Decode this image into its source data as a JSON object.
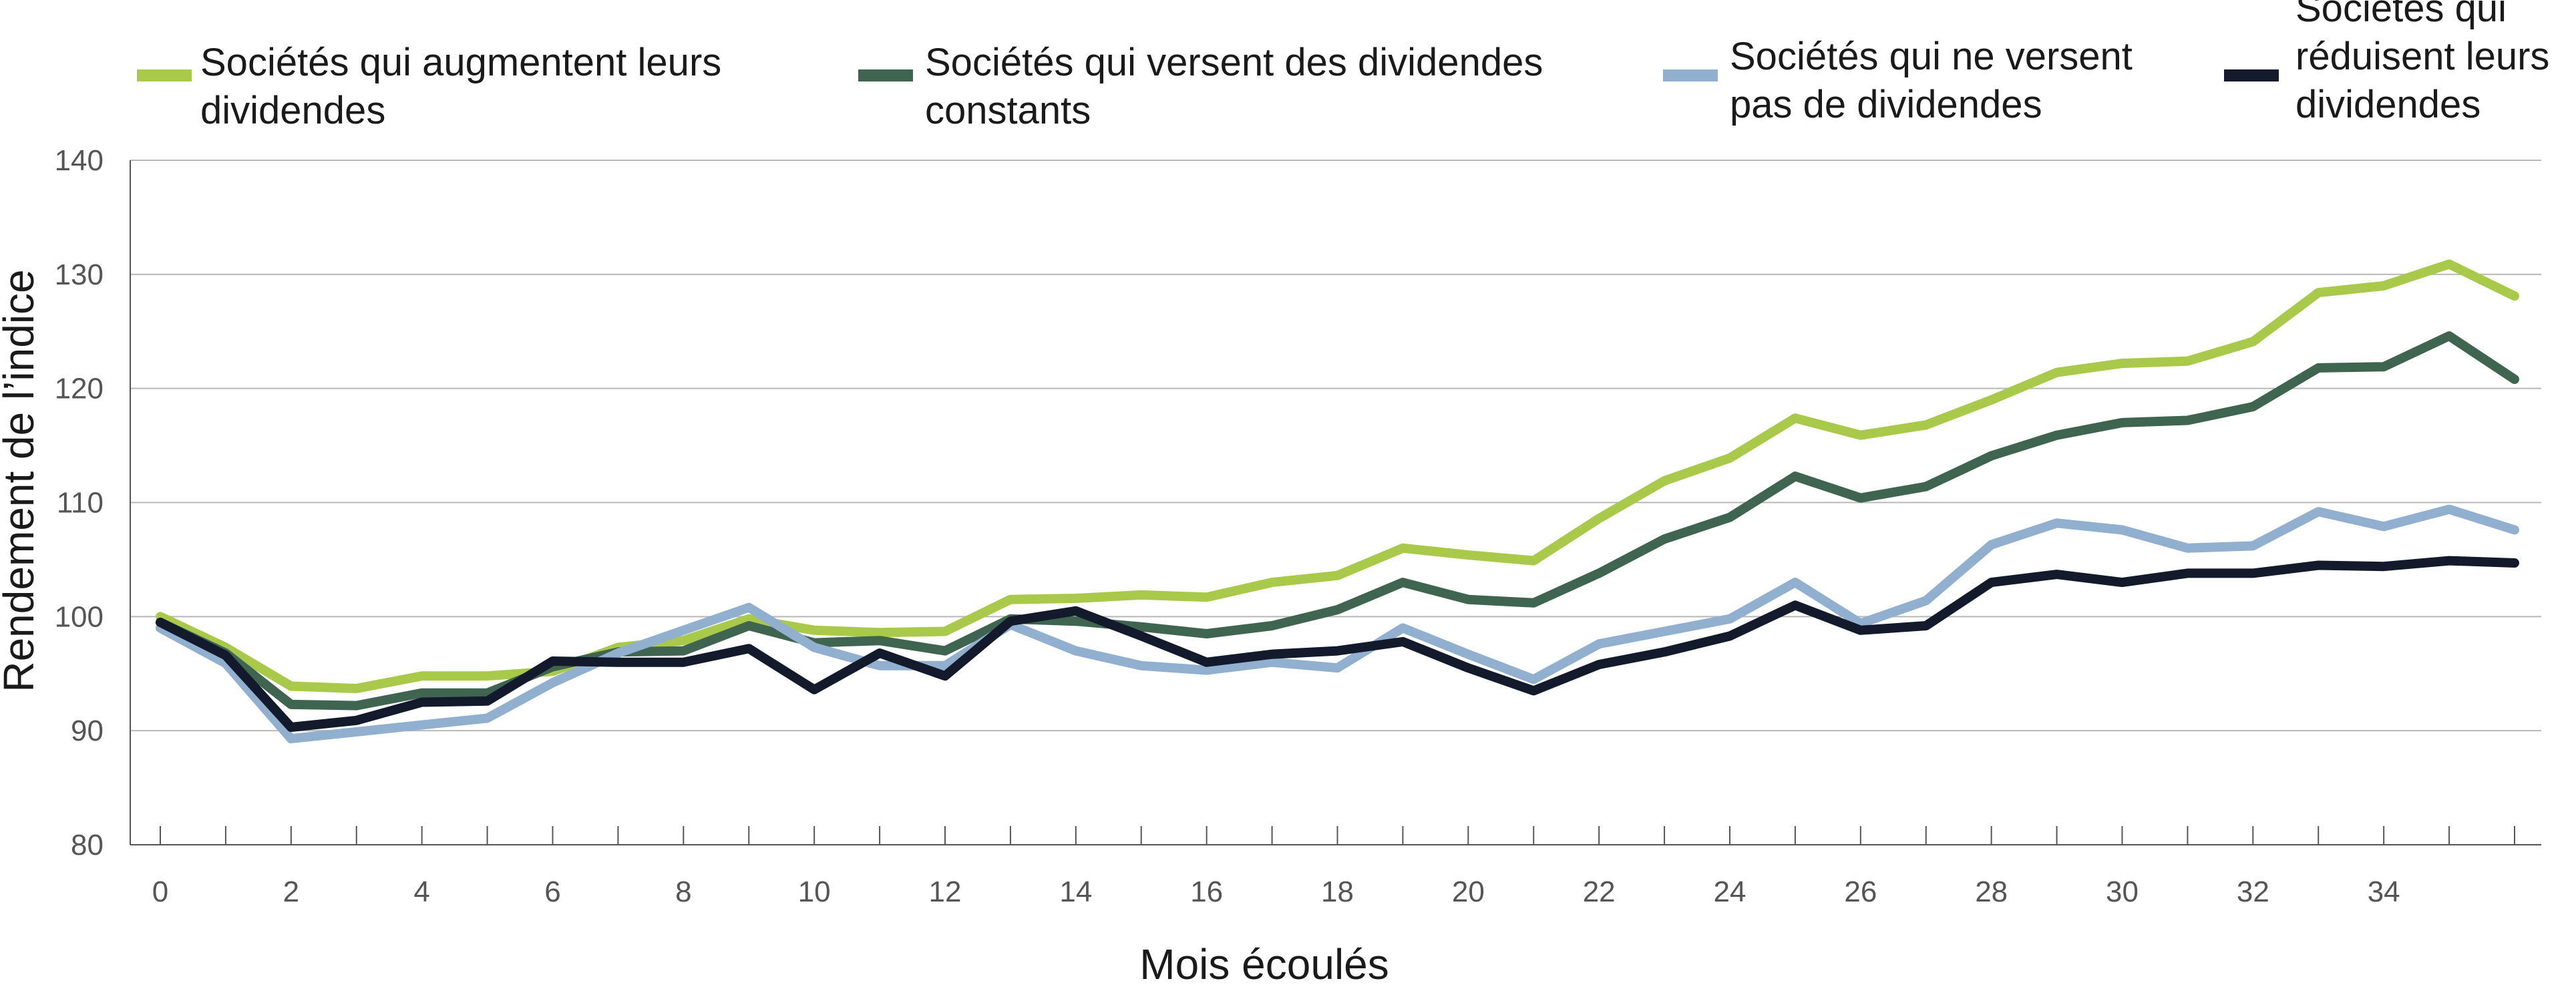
{
  "chart_data": {
    "type": "line",
    "title": "",
    "xlabel": "Mois écoulés",
    "ylabel": "Rendement de l’indice",
    "ylim": [
      80,
      140
    ],
    "xlim": [
      0,
      36
    ],
    "yticks": [
      80,
      90,
      100,
      110,
      120,
      130,
      140
    ],
    "xticks": [
      0,
      2,
      4,
      6,
      8,
      10,
      12,
      14,
      16,
      18,
      20,
      22,
      24,
      26,
      28,
      30,
      32,
      34
    ],
    "grid": "horizontal",
    "legend_position": "top",
    "x": [
      0,
      1,
      2,
      3,
      4,
      5,
      6,
      7,
      8,
      9,
      10,
      11,
      12,
      13,
      14,
      15,
      16,
      17,
      18,
      19,
      20,
      21,
      22,
      23,
      24,
      25,
      26,
      27,
      28,
      29,
      30,
      31,
      32,
      33,
      34,
      35,
      36
    ],
    "series": [
      {
        "name": "Sociétés qui augmentent leurs dividendes",
        "legend_lines": [
          "Sociétés qui augmentent leurs",
          "dividendes"
        ],
        "color": "#a9c94a",
        "values": [
          100,
          97.3,
          93.9,
          93.7,
          94.8,
          94.8,
          95.2,
          97.3,
          97.9,
          99.8,
          98.8,
          98.6,
          98.7,
          101.5,
          101.6,
          101.9,
          101.7,
          103.0,
          103.6,
          106.0,
          105.4,
          104.9,
          108.6,
          111.9,
          113.9,
          117.4,
          115.9,
          116.8,
          119.0,
          121.4,
          122.2,
          122.4,
          124.1,
          128.4,
          129.0,
          130.9,
          128.1
        ]
      },
      {
        "name": "Sociétés qui versent des dividendes constants",
        "legend_lines": [
          "Sociétés qui versent des dividendes",
          "constants"
        ],
        "color": "#3f6551",
        "values": [
          99.5,
          96.8,
          92.3,
          92.2,
          93.3,
          93.3,
          95.6,
          96.9,
          97.0,
          99.2,
          97.7,
          97.9,
          97.0,
          99.8,
          99.6,
          99.1,
          98.5,
          99.2,
          100.6,
          103.0,
          101.5,
          101.2,
          103.8,
          106.8,
          108.7,
          112.3,
          110.4,
          111.4,
          114.1,
          115.9,
          117.0,
          117.2,
          118.4,
          121.8,
          121.9,
          124.6,
          120.8
        ]
      },
      {
        "name": "Sociétés qui ne versent pas de dividendes",
        "legend_lines": [
          "Sociétés qui ne versent",
          "pas de dividendes"
        ],
        "color": "#91b0cf",
        "values": [
          99.0,
          95.9,
          89.3,
          89.9,
          90.5,
          91.1,
          94.2,
          96.8,
          98.8,
          100.8,
          97.3,
          95.7,
          95.7,
          99.3,
          97.0,
          95.7,
          95.3,
          96.0,
          95.5,
          99.0,
          96.7,
          94.5,
          97.6,
          98.7,
          99.8,
          103.0,
          99.4,
          101.4,
          106.3,
          108.2,
          107.6,
          106.0,
          106.2,
          109.2,
          107.9,
          109.4,
          107.6
        ]
      },
      {
        "name": "Sociétés qui réduisent leurs dividendes",
        "legend_lines": [
          "Sociétés qui",
          "réduisent leurs",
          "dividendes"
        ],
        "color": "#121a2b",
        "values": [
          99.5,
          96.6,
          90.3,
          90.9,
          92.5,
          92.6,
          96.1,
          96.0,
          96.0,
          97.2,
          93.6,
          96.8,
          94.8,
          99.6,
          100.5,
          98.3,
          96.0,
          96.7,
          97.0,
          97.8,
          95.5,
          93.5,
          95.8,
          96.9,
          98.3,
          101.0,
          98.8,
          99.2,
          103.0,
          103.7,
          103.0,
          103.8,
          103.8,
          104.5,
          104.4,
          104.9,
          104.7
        ]
      }
    ]
  }
}
